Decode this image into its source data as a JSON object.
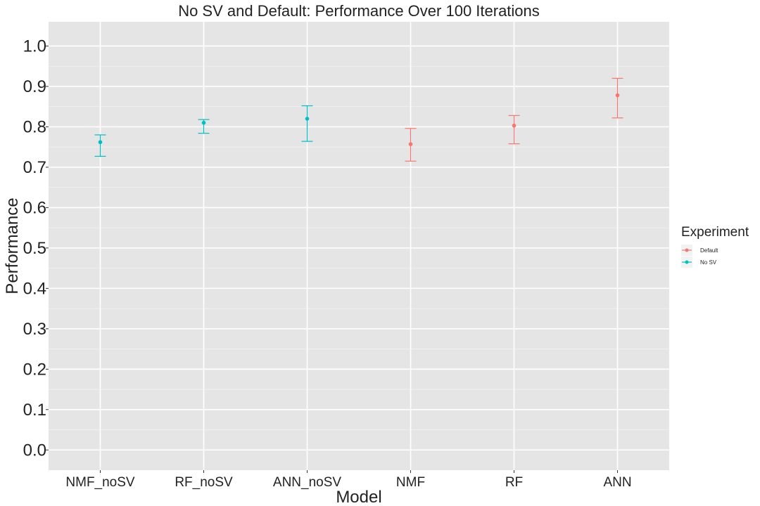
{
  "chart_data": {
    "type": "scatter",
    "title": "No SV and Default: Performance Over 100 Iterations",
    "xlabel": "Model",
    "ylabel": "Performance",
    "categories": [
      "NMF_noSV",
      "RF_noSV",
      "ANN_noSV",
      "NMF",
      "RF",
      "ANN"
    ],
    "ylim": [
      -0.05,
      1.06
    ],
    "yticks": [
      0.0,
      0.1,
      0.2,
      0.3,
      0.4,
      0.5,
      0.6,
      0.7,
      0.8,
      0.9,
      1.0
    ],
    "ytick_labels": [
      "0.0",
      "0.1",
      "0.2",
      "0.3",
      "0.4",
      "0.5",
      "0.6",
      "0.7",
      "0.8",
      "0.9",
      "1.0"
    ],
    "grid": true,
    "legend": {
      "title": "Experiment",
      "placement": "right",
      "entries": [
        {
          "name": "Default",
          "color": "#F8766D"
        },
        {
          "name": "No SV",
          "color": "#00BFC4"
        }
      ]
    },
    "series": [
      {
        "name": "No SV",
        "color": "#00BFC4",
        "points": [
          {
            "x": "NMF_noSV",
            "y": 0.762,
            "ymin": 0.727,
            "ymax": 0.78
          },
          {
            "x": "RF_noSV",
            "y": 0.81,
            "ymin": 0.784,
            "ymax": 0.818
          },
          {
            "x": "ANN_noSV",
            "y": 0.82,
            "ymin": 0.764,
            "ymax": 0.852
          }
        ]
      },
      {
        "name": "Default",
        "color": "#F8766D",
        "points": [
          {
            "x": "NMF",
            "y": 0.757,
            "ymin": 0.715,
            "ymax": 0.796
          },
          {
            "x": "RF",
            "y": 0.803,
            "ymin": 0.758,
            "ymax": 0.828
          },
          {
            "x": "ANN",
            "y": 0.878,
            "ymin": 0.822,
            "ymax": 0.92
          }
        ]
      }
    ]
  }
}
